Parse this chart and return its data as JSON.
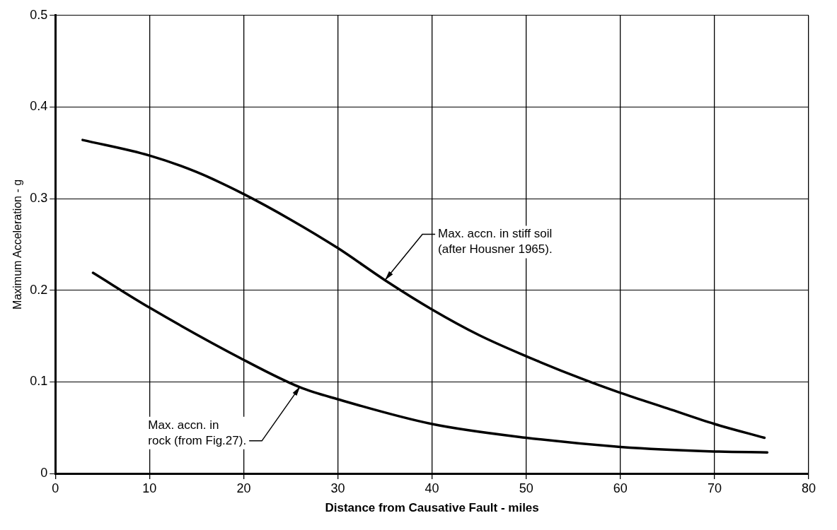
{
  "chart_data": {
    "type": "line",
    "xlabel": "Distance from Causative Fault - miles",
    "ylabel": "Maximum Acceleration - g",
    "xlim": [
      0,
      80
    ],
    "xticks": [
      0,
      10,
      20,
      30,
      40,
      50,
      60,
      70,
      80
    ],
    "ylim": [
      0,
      0.5
    ],
    "yticks": [
      0,
      0.1,
      0.2,
      0.3,
      0.4,
      0.5
    ],
    "grid": true,
    "marker": "none",
    "line_style": "solid",
    "series": [
      {
        "color": "#000000",
        "x": [
          2.9,
          10,
          15,
          20,
          25,
          30,
          35,
          40,
          45,
          50,
          56,
          60,
          65,
          70,
          75.3
        ],
        "values": [
          0.364,
          0.347,
          0.329,
          0.305,
          0.277,
          0.246,
          0.211,
          0.179,
          0.151,
          0.128,
          0.103,
          0.088,
          0.071,
          0.054,
          0.039
        ]
      },
      {
        "color": "#000000",
        "x": [
          4,
          10,
          20,
          26,
          30,
          40,
          50,
          60,
          70,
          75.6
        ],
        "values": [
          0.219,
          0.181,
          0.124,
          0.094,
          0.081,
          0.054,
          0.039,
          0.029,
          0.024,
          0.023
        ]
      }
    ],
    "annotations": [
      {
        "text": "Max. accn. in stiff soil\n(after Housner 1965).",
        "x": 35,
        "y": 0.211
      },
      {
        "text": "Max. accn. in\nrock (from Fig.27).",
        "x": 26,
        "y": 0.095
      }
    ]
  }
}
